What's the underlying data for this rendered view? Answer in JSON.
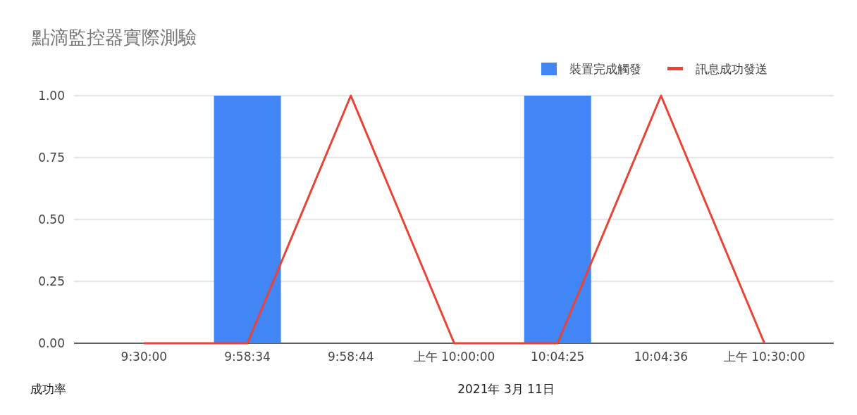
{
  "chart_data": {
    "type": "bar",
    "title": "點滴監控器實際測驗",
    "xlabel": "2021年 3月 11日",
    "ylabel": "成功率",
    "categories": [
      "9:30:00",
      "9:58:34",
      "9:58:44",
      "上午 10:00:00",
      "10:04:25",
      "10:04:36",
      "上午 10:30:00"
    ],
    "series": [
      {
        "name": "裝置完成觸發",
        "color": "#4285f4",
        "values": [
          0,
          1,
          0,
          0,
          1,
          0,
          0
        ]
      },
      {
        "name": "訊息成功發送",
        "type": "line",
        "color": "#ea4335",
        "values": [
          0,
          0,
          1,
          0,
          0,
          1,
          0
        ]
      }
    ],
    "ylim": [
      0,
      1
    ],
    "yticks": [
      {
        "value": 0,
        "label": "0.00"
      },
      {
        "value": 0.25,
        "label": "0.25"
      },
      {
        "value": 0.5,
        "label": "0.50"
      },
      {
        "value": 0.75,
        "label": "0.75"
      },
      {
        "value": 1,
        "label": "1.00"
      }
    ],
    "grid": "y",
    "legend": "top right"
  }
}
